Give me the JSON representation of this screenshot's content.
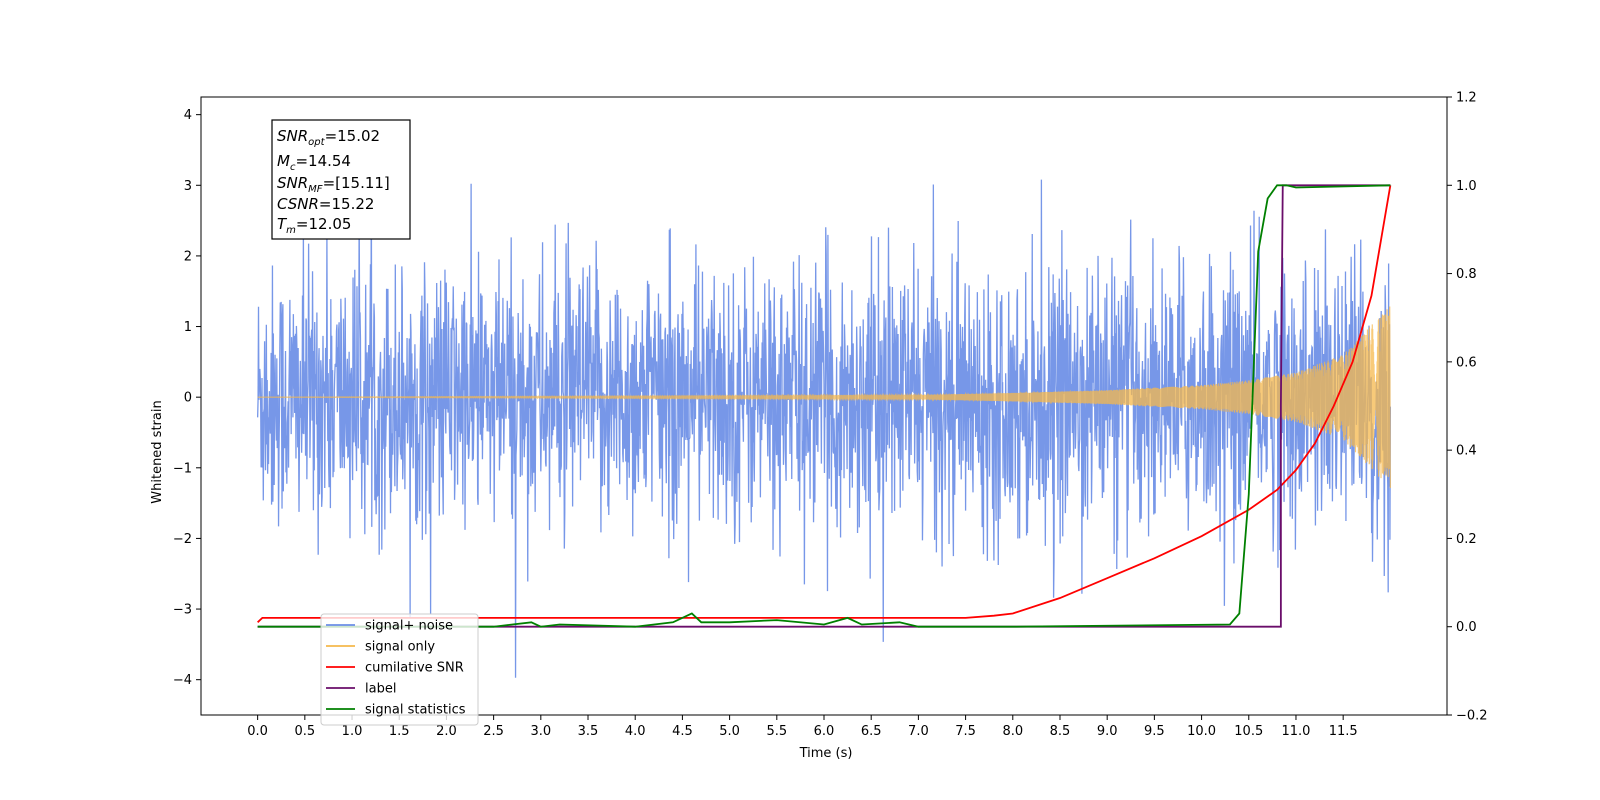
{
  "chart_data": {
    "type": "line",
    "xlabel": "Time (s)",
    "ylabel": "Whitened strain",
    "xlim": [
      -0.6,
      12.6
    ],
    "ylim": [
      -4.5,
      4.25
    ],
    "ylim_right": [
      -0.2,
      1.2
    ],
    "x_ticks": [
      "0.0",
      "0.5",
      "1.0",
      "1.5",
      "2.0",
      "2.5",
      "3.0",
      "3.5",
      "4.0",
      "4.5",
      "5.0",
      "5.5",
      "6.0",
      "6.5",
      "7.0",
      "7.5",
      "8.0",
      "8.5",
      "9.0",
      "9.5",
      "10.0",
      "10.5",
      "11.0",
      "11.5"
    ],
    "y_ticks_left": [
      "4",
      "3",
      "2",
      "1",
      "0",
      "−1",
      "−2",
      "−3",
      "−4"
    ],
    "y_ticks_right": [
      "1.2",
      "1.0",
      "0.8",
      "0.6",
      "0.4",
      "0.2",
      "0.0",
      "−0.2"
    ],
    "info_box": {
      "snr_opt": {
        "sym": "SNR",
        "sub": "opt",
        "value": "=15.02"
      },
      "mc": {
        "sym": "M",
        "sub": "c",
        "value": "=14.54"
      },
      "snr_mf": {
        "sym": "SNR",
        "sub": "MF",
        "value": "=[15.11]"
      },
      "csnr": {
        "sym": "CSNR",
        "sub": "",
        "value": "=15.22"
      },
      "tm": {
        "sym": "T",
        "sub": "m",
        "value": "=12.05"
      }
    },
    "series": [
      {
        "name": "signal+ noise",
        "axis": "left",
        "color": "#6b8ee6",
        "note": "whitened noise, std≈0.9, range about −4.1..3.7"
      },
      {
        "name": "signal only",
        "axis": "left",
        "color": "#f5b84c",
        "envelope": [
          [
            0.0,
            0.0
          ],
          [
            7.0,
            0.03
          ],
          [
            8.0,
            0.06
          ],
          [
            9.0,
            0.1
          ],
          [
            10.0,
            0.17
          ],
          [
            10.5,
            0.24
          ],
          [
            11.0,
            0.35
          ],
          [
            11.5,
            0.6
          ],
          [
            12.0,
            1.3
          ]
        ]
      },
      {
        "name": "cumilative SNR",
        "axis": "right",
        "color": "#ff0000",
        "x": [
          0.0,
          0.05,
          7.5,
          7.8,
          8.0,
          8.5,
          9.0,
          9.5,
          10.0,
          10.5,
          10.8,
          11.0,
          11.2,
          11.4,
          11.6,
          11.8,
          12.0
        ],
        "y": [
          0.01,
          0.02,
          0.02,
          0.025,
          0.03,
          0.065,
          0.11,
          0.155,
          0.205,
          0.265,
          0.31,
          0.355,
          0.415,
          0.5,
          0.6,
          0.75,
          1.0
        ]
      },
      {
        "name": "label",
        "axis": "right",
        "color": "#6a0d6a",
        "x": [
          0.0,
          10.84,
          10.84,
          10.86,
          12.0
        ],
        "y": [
          0.0,
          0.0,
          0.5,
          1.0,
          1.0
        ]
      },
      {
        "name": "signal statistics",
        "axis": "right",
        "color": "#008000",
        "x": [
          0.0,
          2.5,
          2.9,
          3.0,
          3.2,
          4.0,
          4.4,
          4.6,
          4.7,
          5.0,
          5.5,
          6.0,
          6.25,
          6.4,
          6.8,
          7.0,
          7.5,
          8.0,
          10.3,
          10.4,
          10.5,
          10.6,
          10.7,
          10.8,
          10.9,
          11.0,
          12.0
        ],
        "y": [
          0.0,
          0.0,
          0.01,
          0.0,
          0.005,
          0.0,
          0.01,
          0.03,
          0.01,
          0.01,
          0.015,
          0.005,
          0.02,
          0.005,
          0.01,
          0.0,
          0.0,
          0.0,
          0.005,
          0.03,
          0.3,
          0.85,
          0.97,
          1.0,
          1.0,
          0.995,
          1.0
        ]
      }
    ],
    "legend_position": "lower-left",
    "grid": false
  }
}
